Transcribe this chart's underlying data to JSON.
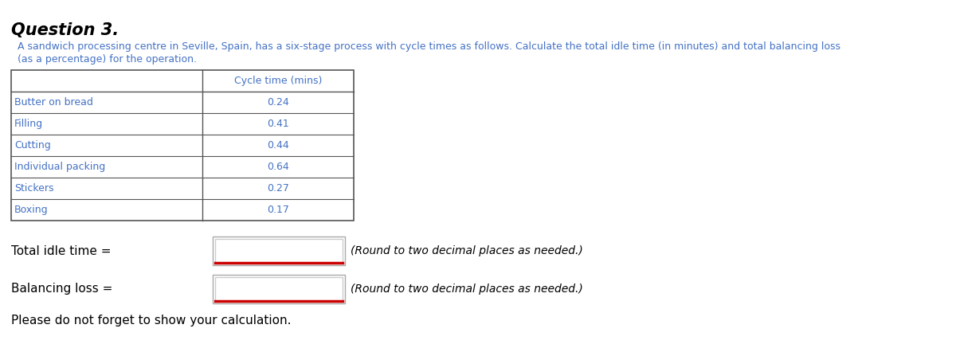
{
  "title": "Question 3.",
  "description_line1": "A sandwich processing centre in Seville, Spain, has a six-stage process with cycle times as follows. Calculate the total idle time (in minutes) and total balancing loss",
  "description_line2": "(as a percentage) for the operation.",
  "col_header": "Cycle time (mins)",
  "stages": [
    "Butter on bread",
    "Filling",
    "Cutting",
    "Individual packing",
    "Stickers",
    "Boxing"
  ],
  "cycle_times": [
    0.24,
    0.41,
    0.44,
    0.64,
    0.27,
    0.17
  ],
  "label_idle": "Total idle time =",
  "label_balancing": "Balancing loss =",
  "note_round": "(Round to two decimal places as needed.)",
  "note_show": "Please do not forget to show your calculation.",
  "bg_color": "#ffffff",
  "title_color": "#000000",
  "desc_color": "#4472c4",
  "table_text_color": "#4472c4",
  "table_border_color": "#555555",
  "input_box_outer": "#aaaaaa",
  "input_box_red": "#cc0000",
  "label_fontsize": 11,
  "desc_fontsize": 9,
  "table_fontsize": 9,
  "title_fontsize": 15,
  "note_fontsize": 10,
  "show_fontsize": 11,
  "fig_width": 12.0,
  "fig_height": 4.42
}
